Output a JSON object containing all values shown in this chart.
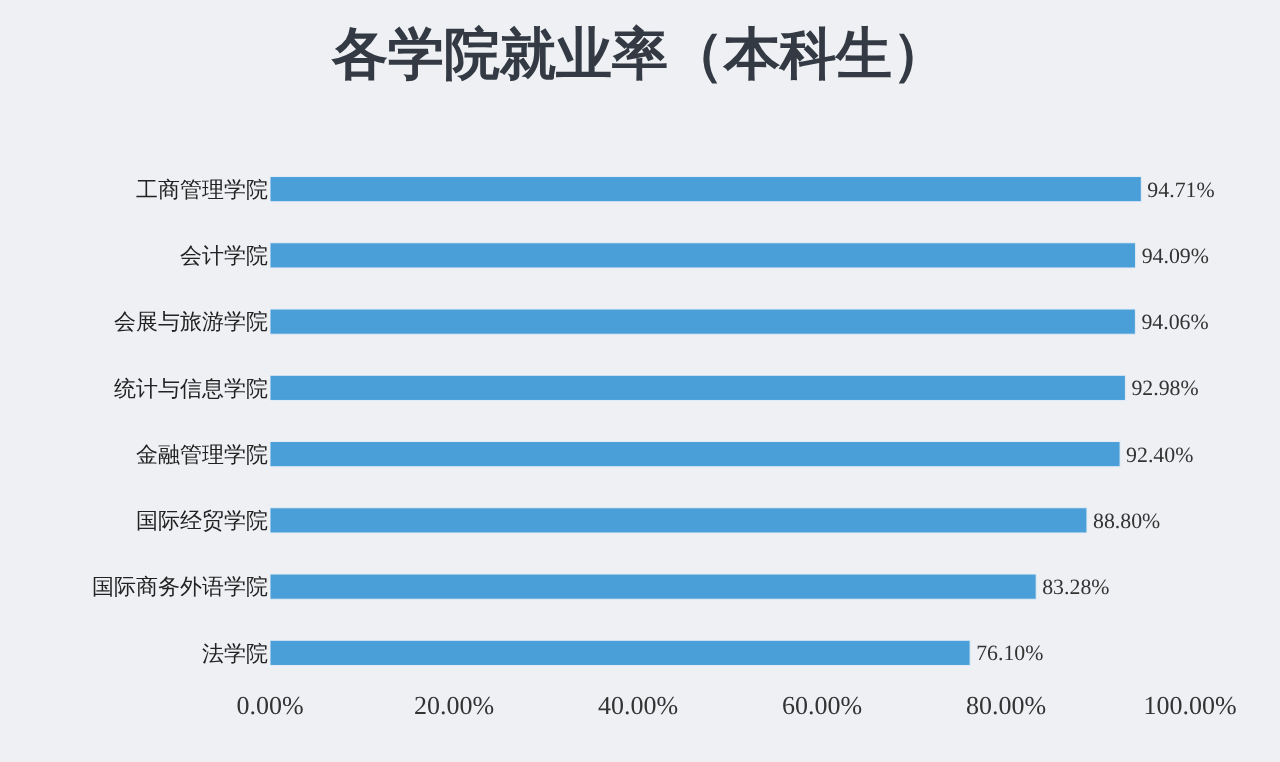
{
  "chart_data": {
    "type": "bar",
    "orientation": "horizontal",
    "title": "各学院就业率（本科生）",
    "categories": [
      "工商管理学院",
      "会计学院",
      "会展与旅游学院",
      "统计与信息学院",
      "金融管理学院",
      "国际经贸学院",
      "国际商务外语学院",
      "法学院"
    ],
    "values": [
      94.71,
      94.09,
      94.06,
      92.98,
      92.4,
      88.8,
      83.28,
      76.1
    ],
    "value_labels": [
      "94.71%",
      "94.09%",
      "94.06%",
      "92.98%",
      "92.40%",
      "88.80%",
      "83.28%",
      "76.10%"
    ],
    "color": "#4a9fd8",
    "xlim": [
      0,
      100
    ],
    "xticks": [
      {
        "value": 0,
        "label": "0.00%"
      },
      {
        "value": 20,
        "label": "20.00%"
      },
      {
        "value": 40,
        "label": "40.00%"
      },
      {
        "value": 60,
        "label": "60.00%"
      },
      {
        "value": 80,
        "label": "80.00%"
      },
      {
        "value": 100,
        "label": "100.00%"
      }
    ],
    "grid": false
  }
}
